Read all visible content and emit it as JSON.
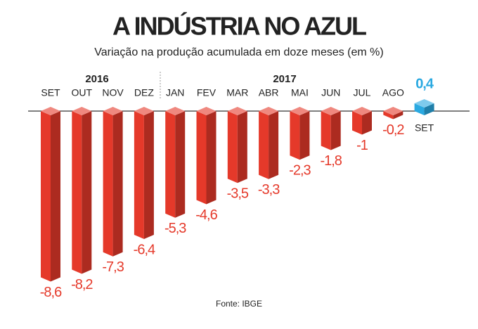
{
  "chart_data": {
    "type": "bar3d",
    "title": "A INDÚSTRIA NO AZUL",
    "subtitle": "Variação na produção acumulada em doze meses (em %)",
    "year_labels": [
      "2016",
      "2017"
    ],
    "categories": [
      "SET",
      "OUT",
      "NOV",
      "DEZ",
      "JAN",
      "FEV",
      "MAR",
      "ABR",
      "MAI",
      "JUN",
      "JUL",
      "AGO",
      "SET"
    ],
    "values": [
      -8.6,
      -8.2,
      -7.3,
      -6.4,
      -5.3,
      -4.6,
      -3.5,
      -3.3,
      -2.3,
      -1.8,
      -1,
      -0.2,
      0.4
    ],
    "value_labels": [
      "-8,6",
      "-8,2",
      "-7,3",
      "-6,4",
      "-5,3",
      "-4,6",
      "-3,5",
      "-3,3",
      "-2,3",
      "-1,8",
      "-1",
      "-0,2",
      "0,4"
    ],
    "color": "#e5392a",
    "positive_color": "#2aa9e1",
    "source": "Fonte: IBGE"
  }
}
